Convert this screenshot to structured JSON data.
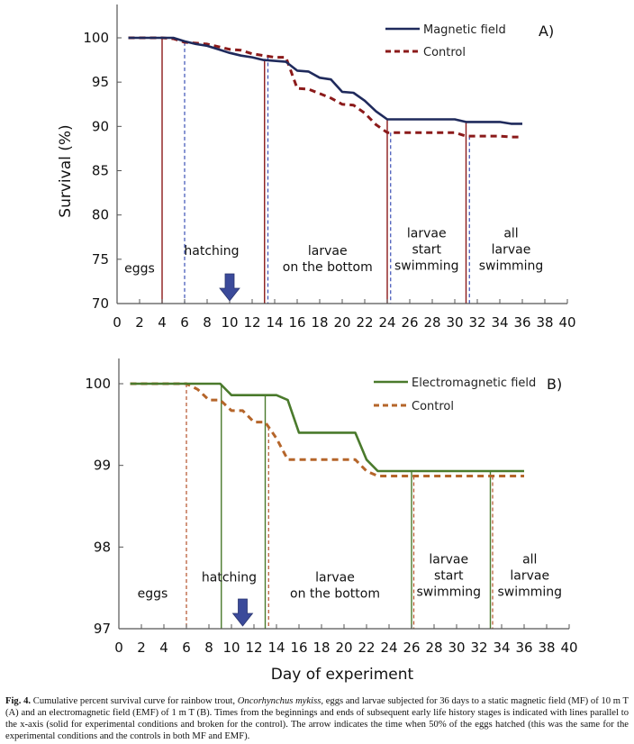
{
  "chart_data": [
    {
      "id": "A",
      "type": "line",
      "panel_label": "A)",
      "ylabel": "Survival  (%)",
      "xlabel": "",
      "xlim": [
        0,
        40
      ],
      "ylim": [
        70,
        100
      ],
      "x_ticks": [
        0,
        2,
        4,
        6,
        8,
        10,
        12,
        14,
        16,
        18,
        20,
        22,
        24,
        26,
        28,
        30,
        32,
        34,
        36,
        38,
        40
      ],
      "y_ticks": [
        70,
        75,
        80,
        85,
        90,
        95,
        100
      ],
      "legend": {
        "placement": "top-right"
      },
      "series": [
        {
          "name": "Magnetic field",
          "style": "solid",
          "color": "#1f2a5c",
          "x": [
            1,
            2,
            3,
            4,
            5,
            6,
            7,
            8,
            9,
            10,
            11,
            12,
            13,
            14,
            15,
            16,
            17,
            18,
            19,
            20,
            21,
            22,
            23,
            24,
            25,
            26,
            27,
            28,
            29,
            30,
            31,
            32,
            33,
            34,
            35,
            36
          ],
          "y": [
            100,
            100,
            100,
            100,
            100,
            99.6,
            99.3,
            99.1,
            98.7,
            98.3,
            98.0,
            97.8,
            97.5,
            97.4,
            97.3,
            96.3,
            96.2,
            95.5,
            95.3,
            93.9,
            93.8,
            92.9,
            91.7,
            90.8,
            90.8,
            90.8,
            90.8,
            90.8,
            90.8,
            90.8,
            90.5,
            90.5,
            90.5,
            90.5,
            90.3,
            90.3
          ]
        },
        {
          "name": "Control",
          "style": "dashed",
          "color": "#8b1a1a",
          "x": [
            1,
            2,
            3,
            4,
            5,
            6,
            7,
            8,
            9,
            10,
            11,
            12,
            13,
            14,
            15,
            16,
            17,
            18,
            19,
            20,
            21,
            22,
            23,
            24,
            25,
            26,
            27,
            28,
            29,
            30,
            31,
            32,
            33,
            34,
            35,
            36
          ],
          "y": [
            100,
            100,
            100,
            100,
            99.9,
            99.5,
            99.4,
            99.3,
            99.0,
            98.7,
            98.6,
            98.2,
            98.0,
            97.8,
            97.8,
            94.3,
            94.2,
            93.7,
            93.2,
            92.5,
            92.4,
            91.5,
            90.2,
            89.3,
            89.3,
            89.3,
            89.3,
            89.3,
            89.3,
            89.3,
            88.9,
            88.9,
            88.9,
            88.9,
            88.8,
            88.8
          ]
        }
      ],
      "stage_boundaries": [
        {
          "x": 4,
          "style": "solid",
          "group": "Magnetic field"
        },
        {
          "x": 6,
          "style": "dashed",
          "group": "Control"
        },
        {
          "x": 13.1,
          "style": "solid",
          "group": "Magnetic field"
        },
        {
          "x": 13.4,
          "style": "dashed",
          "group": "Control"
        },
        {
          "x": 24,
          "style": "solid",
          "group": "Magnetic field"
        },
        {
          "x": 24.3,
          "style": "dashed",
          "group": "Control"
        },
        {
          "x": 31,
          "style": "solid",
          "group": "Magnetic field"
        },
        {
          "x": 31.3,
          "style": "dashed",
          "group": "Control"
        }
      ],
      "stage_labels": [
        {
          "lines": [
            "eggs"
          ],
          "x": 2,
          "y": 73.5
        },
        {
          "lines": [
            "hatching"
          ],
          "x": 8.4,
          "y": 75.5
        },
        {
          "lines": [
            "larvae",
            "on the bottom"
          ],
          "x": 18.7,
          "y": 75.5
        },
        {
          "lines": [
            "larvae",
            "start",
            "swimming"
          ],
          "x": 27.5,
          "y": 77.5
        },
        {
          "lines": [
            "all",
            "larvae",
            "swimming"
          ],
          "x": 35,
          "y": 77.5
        }
      ],
      "hatch50_arrow_x": 10,
      "boundary_colors": {
        "solid": "#8b1a1a",
        "dashed": "#3a4fb5"
      }
    },
    {
      "id": "B",
      "type": "line",
      "panel_label": "B)",
      "ylabel": "",
      "xlabel": "Day of experiment",
      "xlim": [
        0,
        40
      ],
      "ylim": [
        97,
        100
      ],
      "x_ticks": [
        0,
        2,
        4,
        6,
        8,
        10,
        12,
        14,
        16,
        18,
        20,
        22,
        24,
        26,
        28,
        30,
        32,
        34,
        36,
        38,
        40
      ],
      "y_ticks": [
        97,
        98,
        99,
        100
      ],
      "legend": {
        "placement": "top-right"
      },
      "series": [
        {
          "name": "Electromagnetic field",
          "style": "solid",
          "color": "#4a7a2c",
          "x": [
            1,
            2,
            3,
            4,
            5,
            6,
            7,
            8,
            9,
            10,
            11,
            12,
            13,
            14,
            15,
            16,
            17,
            18,
            19,
            20,
            21,
            22,
            23,
            24,
            25,
            26,
            27,
            28,
            29,
            30,
            31,
            32,
            33,
            34,
            35,
            36
          ],
          "y": [
            100,
            100,
            100,
            100,
            100,
            100,
            100,
            100,
            100,
            99.86,
            99.86,
            99.86,
            99.86,
            99.86,
            99.8,
            99.4,
            99.4,
            99.4,
            99.4,
            99.4,
            99.4,
            99.07,
            98.93,
            98.93,
            98.93,
            98.93,
            98.93,
            98.93,
            98.93,
            98.93,
            98.93,
            98.93,
            98.93,
            98.93,
            98.93,
            98.93
          ]
        },
        {
          "name": "Control",
          "style": "dashed",
          "color": "#b5652a",
          "x": [
            1,
            2,
            3,
            4,
            5,
            6,
            7,
            8,
            9,
            10,
            11,
            12,
            13,
            14,
            15,
            16,
            17,
            18,
            19,
            20,
            21,
            22,
            23,
            24,
            25,
            26,
            27,
            28,
            29,
            30,
            31,
            32,
            33,
            34,
            35,
            36
          ],
          "y": [
            100,
            100,
            100,
            100,
            100,
            100,
            99.93,
            99.8,
            99.8,
            99.67,
            99.67,
            99.53,
            99.53,
            99.33,
            99.07,
            99.07,
            99.07,
            99.07,
            99.07,
            99.07,
            99.07,
            98.93,
            98.87,
            98.87,
            98.87,
            98.87,
            98.87,
            98.87,
            98.87,
            98.87,
            98.87,
            98.87,
            98.87,
            98.87,
            98.87,
            98.87
          ]
        }
      ],
      "stage_boundaries": [
        {
          "x": 6,
          "style": "dashed",
          "group": "Control"
        },
        {
          "x": 9.1,
          "style": "solid",
          "group": "Electromagnetic field"
        },
        {
          "x": 13,
          "style": "solid",
          "group": "Electromagnetic field"
        },
        {
          "x": 13.3,
          "style": "dashed",
          "group": "Control"
        },
        {
          "x": 26,
          "style": "solid",
          "group": "Electromagnetic field"
        },
        {
          "x": 26.2,
          "style": "dashed",
          "group": "Control"
        },
        {
          "x": 33,
          "style": "solid",
          "group": "Electromagnetic field"
        },
        {
          "x": 33.2,
          "style": "dashed",
          "group": "Control"
        }
      ],
      "stage_labels": [
        {
          "lines": [
            "eggs"
          ],
          "x": 3,
          "y": 97.38
        },
        {
          "lines": [
            "hatching"
          ],
          "x": 9.8,
          "y": 97.58
        },
        {
          "lines": [
            "larvae",
            "on the bottom"
          ],
          "x": 19.2,
          "y": 97.58
        },
        {
          "lines": [
            "larvae",
            "start",
            "swimming"
          ],
          "x": 29.3,
          "y": 97.8
        },
        {
          "lines": [
            "all",
            "larvae",
            "swimming"
          ],
          "x": 36.5,
          "y": 97.8
        }
      ],
      "hatch50_arrow_x": 11,
      "boundary_colors": {
        "solid": "#4a7a2c",
        "dashed": "#b5502a"
      }
    }
  ],
  "colors": {
    "arrow": "#3b4a9a",
    "axis": "#555555"
  },
  "caption": {
    "fig_label": "Fig. 4.",
    "text_before_species": " Cumulative percent survival curve for rainbow trout, ",
    "species": "Oncorhynchus mykiss",
    "text_after_species": ", eggs and larvae subjected for 36 days to a static magnetic field (MF) of 10 m T (A) and an electromagnetic field (EMF) of 1 m T (B). Times from the beginnings and ends of subsequent early life history stages is indicated with lines parallel to the x-axis (solid for experimental conditions and broken for the control). The arrow indicates the time when 50% of the eggs hatched (this was the same for the experimental conditions and the controls in both MF and EMF)."
  }
}
